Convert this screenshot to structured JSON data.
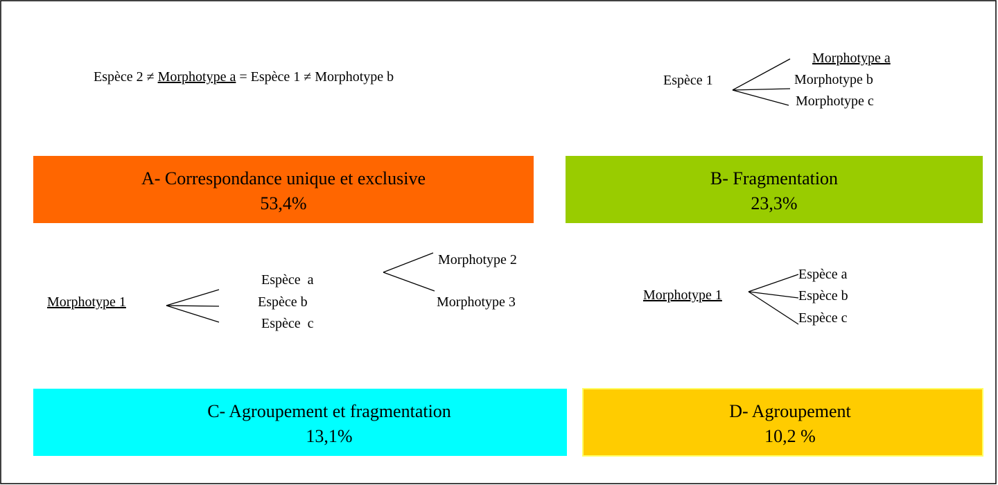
{
  "diagram_a": {
    "parts": [
      "Espèce 2 ≠ ",
      "Morphotype a",
      " = Espèce 1 ≠ Morphotype b"
    ]
  },
  "diagram_b": {
    "root": "Espèce 1",
    "leaves": [
      "Morphotype a",
      "Morphotype b",
      "Morphotype c"
    ]
  },
  "diagram_c": {
    "root": "Morphotype 1",
    "middle": [
      "Espèce  a",
      "Espèce b",
      "Espèce  c"
    ],
    "right": [
      "Morphotype 2",
      "Morphotype 3"
    ]
  },
  "diagram_d": {
    "root": "Morphotype 1",
    "leaves": [
      "Espèce a",
      "Espèce b",
      "Espèce c"
    ]
  },
  "panels": [
    {
      "title": "A- Correspondance unique et exclusive",
      "percent": "53,4%"
    },
    {
      "title": "B- Fragmentation",
      "percent": "23,3%"
    },
    {
      "title": "C- Agroupement et fragmentation",
      "percent": "13,1%"
    },
    {
      "title": "D- Agroupement",
      "percent": "10,2 %"
    }
  ]
}
